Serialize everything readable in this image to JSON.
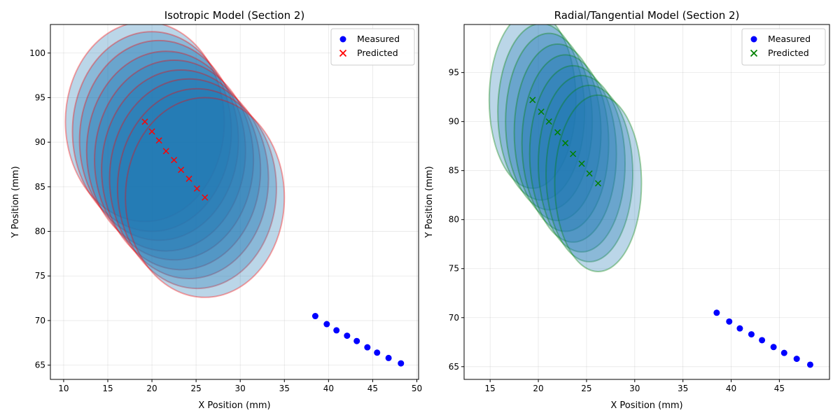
{
  "chart_data": [
    {
      "type": "scatter",
      "title": "Isotropic Model (Section 2)",
      "xlabel": "X Position (mm)",
      "ylabel": "Y Position (mm)",
      "xlim": [
        8.5,
        50.2
      ],
      "ylim": [
        63.4,
        103.2
      ],
      "xticks": [
        10,
        15,
        20,
        25,
        30,
        35,
        40,
        45,
        50
      ],
      "yticks": [
        65,
        70,
        75,
        80,
        85,
        90,
        95,
        100
      ],
      "grid": true,
      "legend_position": "top-right",
      "predicted_color": "#ff0000",
      "measured_color": "#0000ff",
      "ellipse_fill": "#1f77b4",
      "series": [
        {
          "name": "Measured",
          "marker": "circle",
          "x": [
            38.5,
            39.8,
            40.9,
            42.1,
            43.2,
            44.4,
            45.5,
            46.8,
            48.2
          ],
          "y": [
            70.5,
            69.6,
            68.9,
            68.3,
            67.7,
            67.0,
            66.4,
            65.8,
            65.2
          ]
        },
        {
          "name": "Predicted",
          "marker": "x",
          "x": [
            19.2,
            20.0,
            20.8,
            21.6,
            22.5,
            23.3,
            24.2,
            25.1,
            26.0
          ],
          "y": [
            92.3,
            91.2,
            90.2,
            89.0,
            88.0,
            86.9,
            85.9,
            84.8,
            83.8
          ],
          "uncertainty": {
            "rx": 9.0,
            "ry": 11.2,
            "angle": 0
          }
        }
      ]
    },
    {
      "type": "scatter",
      "title": "Radial/Tangential Model (Section 2)",
      "xlabel": "X Position (mm)",
      "ylabel": "Y Position (mm)",
      "xlim": [
        12.3,
        50.2
      ],
      "ylim": [
        63.7,
        99.9
      ],
      "xticks": [
        15,
        20,
        25,
        30,
        35,
        40,
        45
      ],
      "yticks": [
        65,
        70,
        75,
        80,
        85,
        90,
        95
      ],
      "grid": true,
      "legend_position": "top-right",
      "predicted_color": "#008000",
      "measured_color": "#0000ff",
      "ellipse_fill": "#1f77b4",
      "series": [
        {
          "name": "Measured",
          "marker": "circle",
          "x": [
            38.5,
            39.8,
            40.9,
            42.1,
            43.2,
            44.4,
            45.5,
            46.8,
            48.2
          ],
          "y": [
            70.5,
            69.6,
            68.9,
            68.3,
            67.7,
            67.0,
            66.4,
            65.8,
            65.2
          ]
        },
        {
          "name": "Predicted",
          "marker": "x",
          "x": [
            19.4,
            20.3,
            21.1,
            22.0,
            22.8,
            23.6,
            24.5,
            25.3,
            26.2
          ],
          "y": [
            92.2,
            91.0,
            90.0,
            88.9,
            87.8,
            86.7,
            85.7,
            84.7,
            83.7
          ],
          "uncertainty": {
            "rx": 4.5,
            "ry": 9.0,
            "angle": 0
          }
        }
      ]
    }
  ]
}
